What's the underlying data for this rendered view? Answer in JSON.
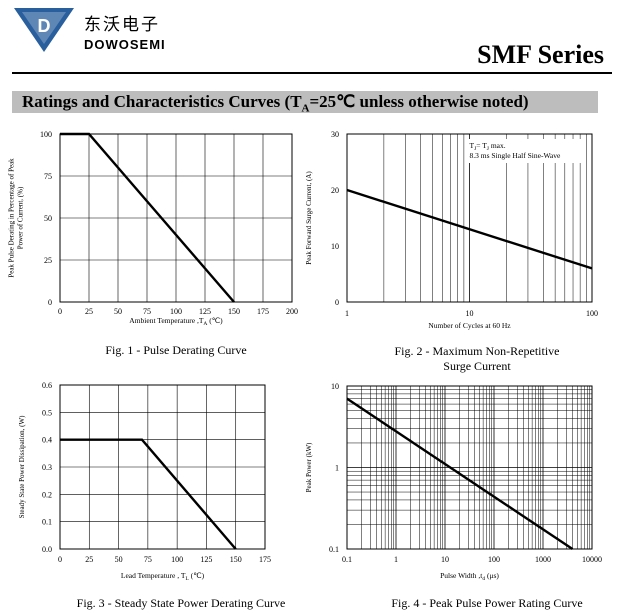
{
  "brand": {
    "name_cn": "东沃电子",
    "name_en": "DOWOSEMI",
    "logo_letter": "D",
    "logo_color": "#2a5f9e"
  },
  "header": {
    "series": "SMF Series"
  },
  "banner": {
    "prefix": "Ratings and Characteristics Curves (T",
    "sub": "A",
    "suffix": "=25℃ unless otherwise noted)"
  },
  "chart_data": [
    {
      "id": "fig1",
      "type": "line",
      "caption": "Fig. 1 - Pulse Derating Curve",
      "xlabel": "Ambient Temperature ,T",
      "xlabel_sub": "A",
      "xlabel_unit": " (℃)",
      "ylabel_lines": [
        "Peak Pulse Derating in Percentage of Peak",
        "Power of Current, (%)"
      ],
      "xlim": [
        0,
        200
      ],
      "ylim": [
        0,
        100
      ],
      "xticks": [
        0,
        25,
        50,
        75,
        100,
        125,
        150,
        175,
        200
      ],
      "yticks": [
        0,
        25,
        50,
        75,
        100
      ],
      "x_scale": "linear",
      "y_scale": "linear",
      "grid": true,
      "series": [
        {
          "x": [
            0,
            25,
            150
          ],
          "y": [
            100,
            100,
            0
          ]
        }
      ]
    },
    {
      "id": "fig2",
      "type": "line",
      "caption": "Fig. 2 - Maximum Non-Repetitive\nSurge Current",
      "xlabel": "Number of Cycles at 60 Hz",
      "ylabel_lines": [
        "Peak Forward Surge Current, (A)"
      ],
      "xlim": [
        1,
        100
      ],
      "ylim": [
        0,
        30
      ],
      "xticks": [
        1,
        10,
        100
      ],
      "yticks": [
        0,
        10,
        20,
        30
      ],
      "x_scale": "log",
      "y_scale": "linear",
      "grid": true,
      "grid_y": false,
      "annotation": [
        "T",
        "J",
        "= T",
        "J",
        " max.",
        "8.3 ms Single Half Sine-Wave"
      ],
      "series": [
        {
          "x": [
            1,
            100
          ],
          "y": [
            20,
            6
          ]
        }
      ]
    },
    {
      "id": "fig3",
      "type": "line",
      "caption": "Fig. 3 - Steady State Power Derating Curve",
      "xlabel": "Lead Temperature , T",
      "xlabel_sub": "L",
      "xlabel_unit": " (℃)",
      "ylabel_lines": [
        "Steady State Power Dissipation, (W)"
      ],
      "xlim": [
        0,
        175
      ],
      "ylim": [
        0,
        0.6
      ],
      "xticks": [
        0,
        25,
        50,
        75,
        100,
        125,
        150,
        175
      ],
      "yticks": [
        0.0,
        0.1,
        0.2,
        0.3,
        0.4,
        0.5,
        0.6
      ],
      "ytick_labels": [
        "0.0",
        "0.1",
        "0.2",
        "0.3",
        "0.4",
        "0.5",
        "0.6"
      ],
      "x_scale": "linear",
      "y_scale": "linear",
      "grid": true,
      "series": [
        {
          "x": [
            0,
            70,
            150
          ],
          "y": [
            0.4,
            0.4,
            0
          ]
        }
      ]
    },
    {
      "id": "fig4",
      "type": "line",
      "caption": "Fig. 4 - Peak Pulse Power Rating Curve",
      "xlabel": "Pulse Width ,t",
      "xlabel_sub": "d",
      "xlabel_unit": " (μs)",
      "ylabel_lines": [
        "Peak Power (kW)"
      ],
      "xlim": [
        0.1,
        10000
      ],
      "ylim": [
        0.1,
        10
      ],
      "xticks": [
        0.1,
        1,
        10,
        100,
        1000,
        10000
      ],
      "xtick_labels": [
        "0.1",
        "1",
        "10",
        "100",
        "1000",
        "10000"
      ],
      "yticks": [
        0.1,
        1,
        10
      ],
      "ytick_labels": [
        "0.1",
        "1",
        "10"
      ],
      "x_scale": "log",
      "y_scale": "log",
      "grid": true,
      "series": [
        {
          "x": [
            0.1,
            4000
          ],
          "y": [
            7,
            0.1
          ]
        }
      ]
    }
  ]
}
